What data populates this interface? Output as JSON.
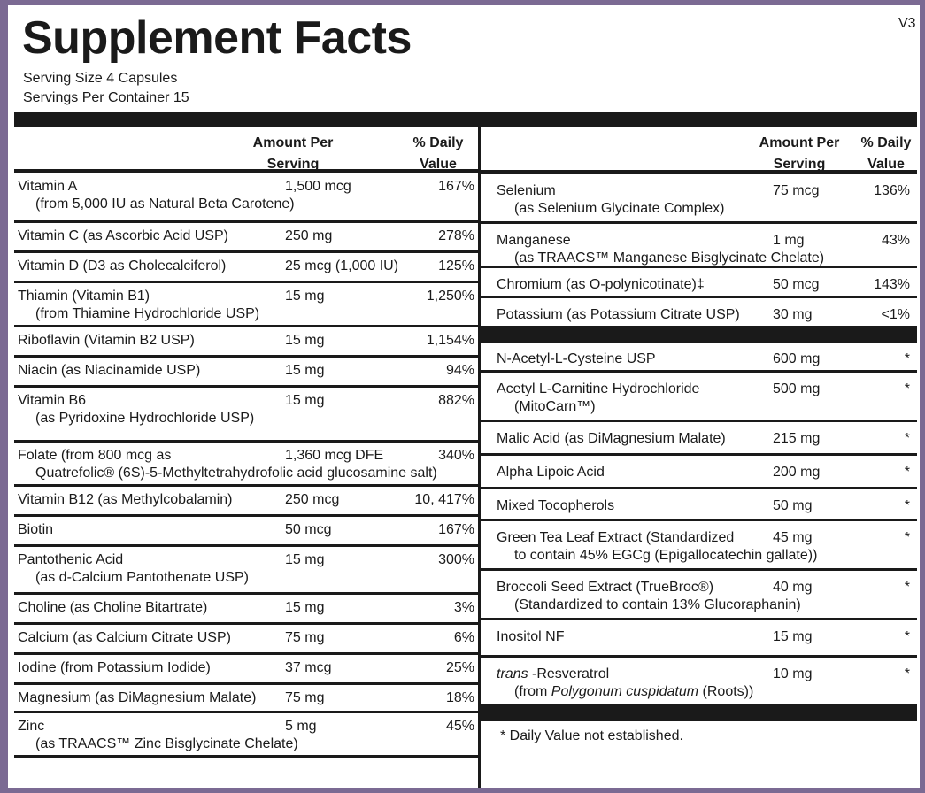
{
  "title": "Supplement Facts",
  "version": "V3",
  "serving_size": "Serving Size  4 Capsules",
  "servings_per_container": "Servings Per Container  15",
  "headers": {
    "amount": "Amount Per Serving",
    "dv": "% Daily Value"
  },
  "left": [
    {
      "name": "Vitamin A",
      "sub": "(from 5,000 IU as Natural Beta Carotene)",
      "amount": "1,500 mcg",
      "dv": "167%"
    },
    {
      "name": "Vitamin C (as Ascorbic Acid USP)",
      "sub": "",
      "amount": "250 mg",
      "dv": "278%"
    },
    {
      "name": "Vitamin D (D3 as Cholecalciferol)",
      "sub": "",
      "amount": "25 mcg (1,000 IU)",
      "dv": "125%"
    },
    {
      "name": "Thiamin (Vitamin B1)",
      "sub": "(from Thiamine Hydrochloride USP)",
      "amount": "15 mg",
      "dv": "1,250%"
    },
    {
      "name": "Riboflavin (Vitamin B2 USP)",
      "sub": "",
      "amount": "15 mg",
      "dv": "1,154%"
    },
    {
      "name": "Niacin (as Niacinamide USP)",
      "sub": "",
      "amount": "15 mg",
      "dv": "94%"
    },
    {
      "name": "Vitamin B6",
      "sub": "(as Pyridoxine Hydrochloride USP)",
      "amount": "15 mg",
      "dv": "882%"
    },
    {
      "name": "Folate (from 800 mcg as",
      "sub": "Quatrefolic® (6S)-5-Methyltetrahydrofolic acid glucosamine salt)",
      "amount": "1,360 mcg DFE",
      "dv": "340%"
    },
    {
      "name": "Vitamin B12 (as Methylcobalamin)",
      "sub": "",
      "amount": "250 mcg",
      "dv": "10, 417%"
    },
    {
      "name": "Biotin",
      "sub": "",
      "amount": "50 mcg",
      "dv": "167%"
    },
    {
      "name": "Pantothenic Acid",
      "sub": "(as d-Calcium Pantothenate USP)",
      "amount": "15 mg",
      "dv": "300%"
    },
    {
      "name": "Choline (as Choline Bitartrate)",
      "sub": "",
      "amount": "15 mg",
      "dv": "3%"
    },
    {
      "name": "Calcium (as Calcium Citrate USP)",
      "sub": "",
      "amount": "75 mg",
      "dv": "6%"
    },
    {
      "name": "Iodine (from Potassium Iodide)",
      "sub": "",
      "amount": "37 mcg",
      "dv": "25%"
    },
    {
      "name": "Magnesium (as DiMagnesium Malate)",
      "sub": "",
      "amount": "75 mg",
      "dv": "18%"
    },
    {
      "name": "Zinc",
      "sub": "(as TRAACS™ Zinc Bisglycinate Chelate)",
      "amount": "5 mg",
      "dv": "45%"
    }
  ],
  "right": [
    {
      "name": "Selenium",
      "sub": "(as Selenium Glycinate Complex)",
      "amount": "75 mcg",
      "dv": "136%"
    },
    {
      "name": "Manganese",
      "sub": "(as TRAACS™ Manganese Bisglycinate Chelate)",
      "amount": "1 mg",
      "dv": "43%"
    },
    {
      "name": "Chromium (as O-polynicotinate)‡",
      "sub": "",
      "amount": "50 mcg",
      "dv": "143%"
    },
    {
      "name": "Potassium (as Potassium Citrate USP)",
      "sub": "",
      "amount": "30 mg",
      "dv": "<1%"
    },
    {
      "name": "N-Acetyl-L-Cysteine USP",
      "sub": "",
      "amount": "600 mg",
      "dv": "*"
    },
    {
      "name": "Acetyl L-Carnitine Hydrochloride",
      "sub": "(MitoCarn™)",
      "amount": "500 mg",
      "dv": "*"
    },
    {
      "name": "Malic Acid (as DiMagnesium Malate)",
      "sub": "",
      "amount": "215 mg",
      "dv": "*"
    },
    {
      "name": "Alpha Lipoic Acid",
      "sub": "",
      "amount": "200 mg",
      "dv": "*"
    },
    {
      "name": "Mixed Tocopherols",
      "sub": "",
      "amount": "50 mg",
      "dv": "*"
    },
    {
      "name": "Green Tea Leaf Extract  (Standardized",
      "sub": "to contain 45% EGCg (Epigallocatechin gallate))",
      "amount": "45 mg",
      "dv": "*"
    },
    {
      "name": "Broccoli Seed Extract (TrueBroc®)",
      "sub": "(Standardized to contain 13% Glucoraphanin)",
      "amount": "40 mg",
      "dv": "*"
    },
    {
      "name": "Inositol NF",
      "sub": "",
      "amount": "15 mg",
      "dv": "*"
    },
    {
      "name": "trans -Resveratrol",
      "sub": "(from Polygonum cuspidatum (Roots))",
      "amount": "10 mg",
      "dv": "*"
    }
  ],
  "footnote": "*  Daily Value not established."
}
